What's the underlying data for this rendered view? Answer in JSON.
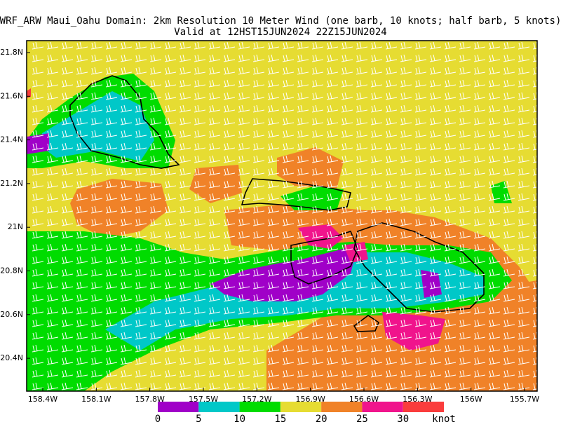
{
  "title": [
    "WRF_ARW Maui_Oahu Domain: 2km Resolution  10 Meter Wind (one barb, 10 knots; half barb, 5 knots)",
    "Valid at 12HST15JUN2024  22Z15JUN2024"
  ],
  "latitude_labels": [
    "21.8N",
    "21.6N",
    "21.4N",
    "21.2N",
    "21N",
    "20.8N",
    "20.6N",
    "20.4N"
  ],
  "longitude_labels": [
    "158.4W",
    "158.1W",
    "157.8W",
    "157.5W",
    "157.2W",
    "156.9W",
    "156.6W",
    "156.3W",
    "156W",
    "155.7W"
  ],
  "colorbar": {
    "levels": [
      0,
      5,
      10,
      15,
      20,
      25,
      30
    ],
    "unit": "knot",
    "colors": [
      "#a000c8",
      "#00c8c8",
      "#00dc00",
      "#e6dc32",
      "#f08228",
      "#f0148c",
      "#fa3c3c"
    ]
  }
}
